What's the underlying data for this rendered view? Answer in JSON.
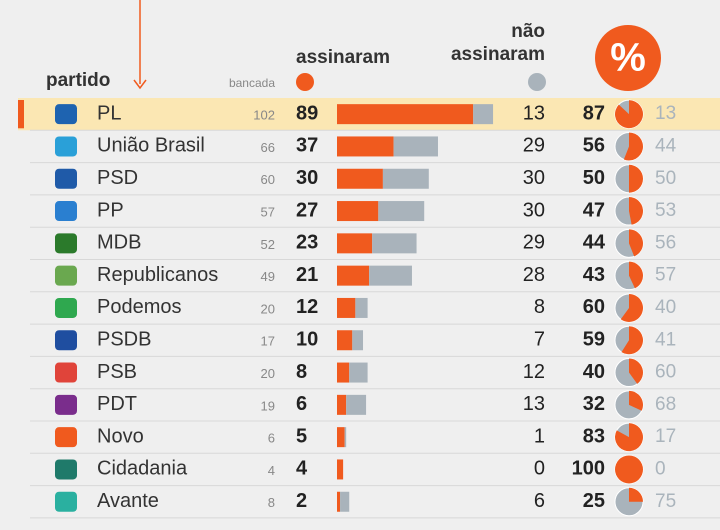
{
  "header": {
    "party": "partido",
    "seats": "bancada",
    "signed": "assinaram",
    "not_signed": "não assinaram",
    "percent": "%"
  },
  "chart_data": {
    "type": "table-bars",
    "colors": {
      "signed": "#f05a1e",
      "not_signed": "#a9b3bb"
    },
    "rows": [
      {
        "party": "PL",
        "seats": 102,
        "signed": 89,
        "not_signed": 13,
        "pct_signed": 87,
        "pct_not": 13
      },
      {
        "party": "União Brasil",
        "seats": 66,
        "signed": 37,
        "not_signed": 29,
        "pct_signed": 56,
        "pct_not": 44
      },
      {
        "party": "PSD",
        "seats": 60,
        "signed": 30,
        "not_signed": 30,
        "pct_signed": 50,
        "pct_not": 50
      },
      {
        "party": "PP",
        "seats": 57,
        "signed": 27,
        "not_signed": 30,
        "pct_signed": 47,
        "pct_not": 53
      },
      {
        "party": "MDB",
        "seats": 52,
        "signed": 23,
        "not_signed": 29,
        "pct_signed": 44,
        "pct_not": 56
      },
      {
        "party": "Republicanos",
        "seats": 49,
        "signed": 21,
        "not_signed": 28,
        "pct_signed": 43,
        "pct_not": 57
      },
      {
        "party": "Podemos",
        "seats": 20,
        "signed": 12,
        "not_signed": 8,
        "pct_signed": 60,
        "pct_not": 40
      },
      {
        "party": "PSDB",
        "seats": 17,
        "signed": 10,
        "not_signed": 7,
        "pct_signed": 59,
        "pct_not": 41
      },
      {
        "party": "PSB",
        "seats": 20,
        "signed": 8,
        "not_signed": 12,
        "pct_signed": 40,
        "pct_not": 60
      },
      {
        "party": "PDT",
        "seats": 19,
        "signed": 6,
        "not_signed": 13,
        "pct_signed": 32,
        "pct_not": 68
      },
      {
        "party": "Novo",
        "seats": 6,
        "signed": 5,
        "not_signed": 1,
        "pct_signed": 83,
        "pct_not": 17
      },
      {
        "party": "Cidadania",
        "seats": 4,
        "signed": 4,
        "not_signed": 0,
        "pct_signed": 100,
        "pct_not": 0
      },
      {
        "party": "Avante",
        "seats": 8,
        "signed": 2,
        "not_signed": 6,
        "pct_signed": 25,
        "pct_not": 75
      }
    ]
  }
}
